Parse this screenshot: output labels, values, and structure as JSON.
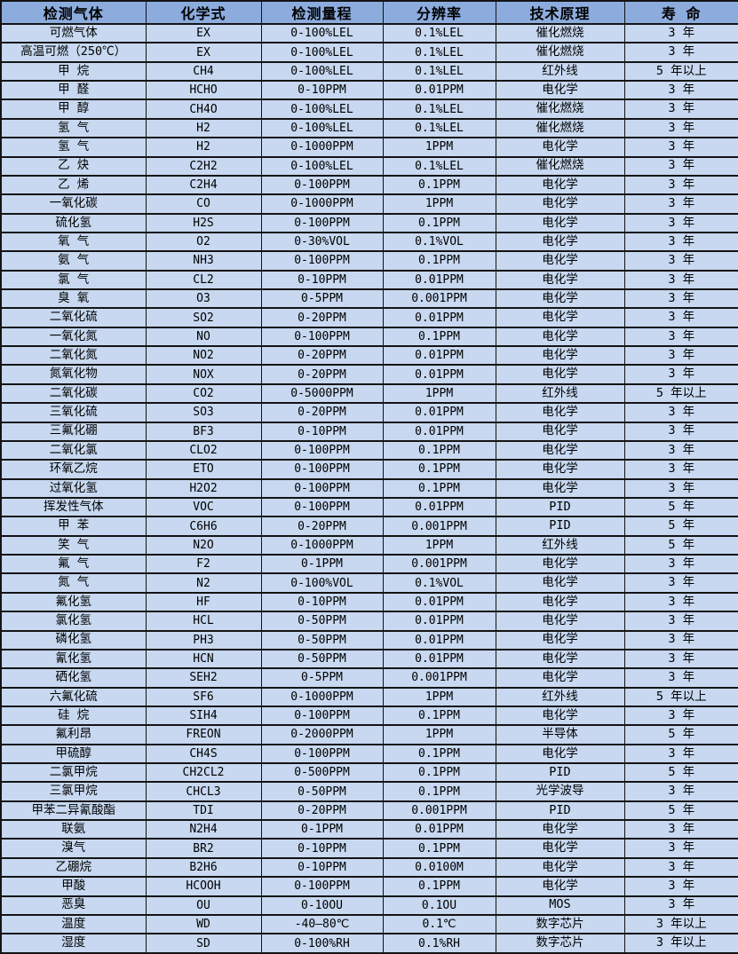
{
  "table": {
    "colors": {
      "header_bg": "#8CACDE",
      "row_bg": "#C7D8F0",
      "border": "#141414",
      "text": "#000000"
    },
    "columns": [
      "检测气体",
      "化学式",
      "检测量程",
      "分辨率",
      "技术原理",
      "寿  命"
    ],
    "column_keys": [
      "gas",
      "formula",
      "range",
      "resolution",
      "principle",
      "lifespan"
    ],
    "rows": [
      [
        "可燃气体",
        "EX",
        "0-100%LEL",
        "0.1%LEL",
        "催化燃烧",
        "3 年"
      ],
      [
        "高温可燃（250℃）",
        "EX",
        "0-100%LEL",
        "0.1%LEL",
        "催化燃烧",
        "3 年"
      ],
      [
        "甲 烷",
        "CH4",
        "0-100%LEL",
        "0.1%LEL",
        "红外线",
        "5 年以上"
      ],
      [
        "甲 醛",
        "HCHO",
        "0-10PPM",
        "0.01PPM",
        "电化学",
        "3 年"
      ],
      [
        "甲 醇",
        "CH4O",
        "0-100%LEL",
        "0.1%LEL",
        "催化燃烧",
        "3 年"
      ],
      [
        "氢 气",
        "H2",
        "0-100%LEL",
        "0.1%LEL",
        "催化燃烧",
        "3 年"
      ],
      [
        "氢 气",
        "H2",
        "0-1000PPM",
        "1PPM",
        "电化学",
        "3 年"
      ],
      [
        "乙 炔",
        "C2H2",
        "0-100%LEL",
        "0.1%LEL",
        "催化燃烧",
        "3 年"
      ],
      [
        "乙 烯",
        "C2H4",
        "0-100PPM",
        "0.1PPM",
        "电化学",
        "3 年"
      ],
      [
        "一氧化碳",
        "CO",
        "0-1000PPM",
        "1PPM",
        "电化学",
        "3 年"
      ],
      [
        "硫化氢",
        "H2S",
        "0-100PPM",
        "0.1PPM",
        "电化学",
        "3 年"
      ],
      [
        "氧 气",
        "O2",
        "0-30%VOL",
        "0.1%VOL",
        "电化学",
        "3 年"
      ],
      [
        "氨 气",
        "NH3",
        "0-100PPM",
        "0.1PPM",
        "电化学",
        "3 年"
      ],
      [
        "氯 气",
        "CL2",
        "0-10PPM",
        "0.01PPM",
        "电化学",
        "3 年"
      ],
      [
        "臭 氧",
        "O3",
        "0-5PPM",
        "0.001PPM",
        "电化学",
        "3 年"
      ],
      [
        "二氧化硫",
        "SO2",
        "0-20PPM",
        "0.01PPM",
        "电化学",
        "3 年"
      ],
      [
        "一氧化氮",
        "NO",
        "0-100PPM",
        "0.1PPM",
        "电化学",
        "3 年"
      ],
      [
        "二氧化氮",
        "NO2",
        "0-20PPM",
        "0.01PPM",
        "电化学",
        "3 年"
      ],
      [
        "氮氧化物",
        "NOX",
        "0-20PPM",
        "0.01PPM",
        "电化学",
        "3 年"
      ],
      [
        "二氧化碳",
        "CO2",
        "0-5000PPM",
        "1PPM",
        "红外线",
        "5 年以上"
      ],
      [
        "三氧化硫",
        "SO3",
        "0-20PPM",
        "0.01PPM",
        "电化学",
        "3 年"
      ],
      [
        "三氟化硼",
        "BF3",
        "0-10PPM",
        "0.01PPM",
        "电化学",
        "3 年"
      ],
      [
        "二氧化氯",
        "CLO2",
        "0-100PPM",
        "0.1PPM",
        "电化学",
        "3 年"
      ],
      [
        "环氧乙烷",
        "ETO",
        "0-100PPM",
        "0.1PPM",
        "电化学",
        "3 年"
      ],
      [
        "过氧化氢",
        "H2O2",
        "0-100PPM",
        "0.1PPM",
        "电化学",
        "3 年"
      ],
      [
        "挥发性气体",
        "VOC",
        "0-100PPM",
        "0.01PPM",
        "PID",
        "5 年"
      ],
      [
        "甲 苯",
        "C6H6",
        "0-20PPM",
        "0.001PPM",
        "PID",
        "5 年"
      ],
      [
        "笑 气",
        "N2O",
        "0-1000PPM",
        "1PPM",
        "红外线",
        "5 年"
      ],
      [
        "氟 气",
        "F2",
        "0-1PPM",
        "0.001PPM",
        "电化学",
        "3 年"
      ],
      [
        "氮 气",
        "N2",
        "0-100%VOL",
        "0.1%VOL",
        "电化学",
        "3 年"
      ],
      [
        "氟化氢",
        "HF",
        "0-10PPM",
        "0.01PPM",
        "电化学",
        "3 年"
      ],
      [
        "氯化氢",
        "HCL",
        "0-50PPM",
        "0.01PPM",
        "电化学",
        "3 年"
      ],
      [
        "磷化氢",
        "PH3",
        "0-50PPM",
        "0.01PPM",
        "电化学",
        "3 年"
      ],
      [
        "氰化氢",
        "HCN",
        "0-50PPM",
        "0.01PPM",
        "电化学",
        "3 年"
      ],
      [
        "硒化氢",
        "SEH2",
        "0-5PPM",
        "0.001PPM",
        "电化学",
        "3 年"
      ],
      [
        "六氟化硫",
        "SF6",
        "0-1000PPM",
        "1PPM",
        "红外线",
        "5 年以上"
      ],
      [
        "硅 烷",
        "SIH4",
        "0-100PPM",
        "0.1PPM",
        "电化学",
        "3 年"
      ],
      [
        "氟利昂",
        "FREON",
        "0-2000PPM",
        "1PPM",
        "半导体",
        "5 年"
      ],
      [
        "甲硫醇",
        "CH4S",
        "0-100PPM",
        "0.1PPM",
        "电化学",
        "3 年"
      ],
      [
        "二氯甲烷",
        "CH2CL2",
        "0-500PPM",
        "0.1PPM",
        "PID",
        "5 年"
      ],
      [
        "三氯甲烷",
        "CHCL3",
        "0-50PPM",
        "0.1PPM",
        "光学波导",
        "3 年"
      ],
      [
        "甲苯二异氰酸酯",
        "TDI",
        "0-20PPM",
        "0.001PPM",
        "PID",
        "5 年"
      ],
      [
        "联氨",
        "N2H4",
        "0-1PPM",
        "0.01PPM",
        "电化学",
        "3 年"
      ],
      [
        "溴气",
        "BR2",
        "0-10PPM",
        "0.1PPM",
        "电化学",
        "3 年"
      ],
      [
        "乙硼烷",
        "B2H6",
        "0-10PPM",
        "0.0100M",
        "电化学",
        "3 年"
      ],
      [
        "甲酸",
        "HCOOH",
        "0-100PPM",
        "0.1PPM",
        "电化学",
        "3 年"
      ],
      [
        "恶臭",
        "OU",
        "0-10OU",
        "0.1OU",
        "MOS",
        "3 年"
      ],
      [
        "温度",
        "WD",
        "-40—80℃",
        "0.1℃",
        "数字芯片",
        "3 年以上"
      ],
      [
        "湿度",
        "SD",
        "0-100%RH",
        "0.1%RH",
        "数字芯片",
        "3 年以上"
      ]
    ]
  }
}
